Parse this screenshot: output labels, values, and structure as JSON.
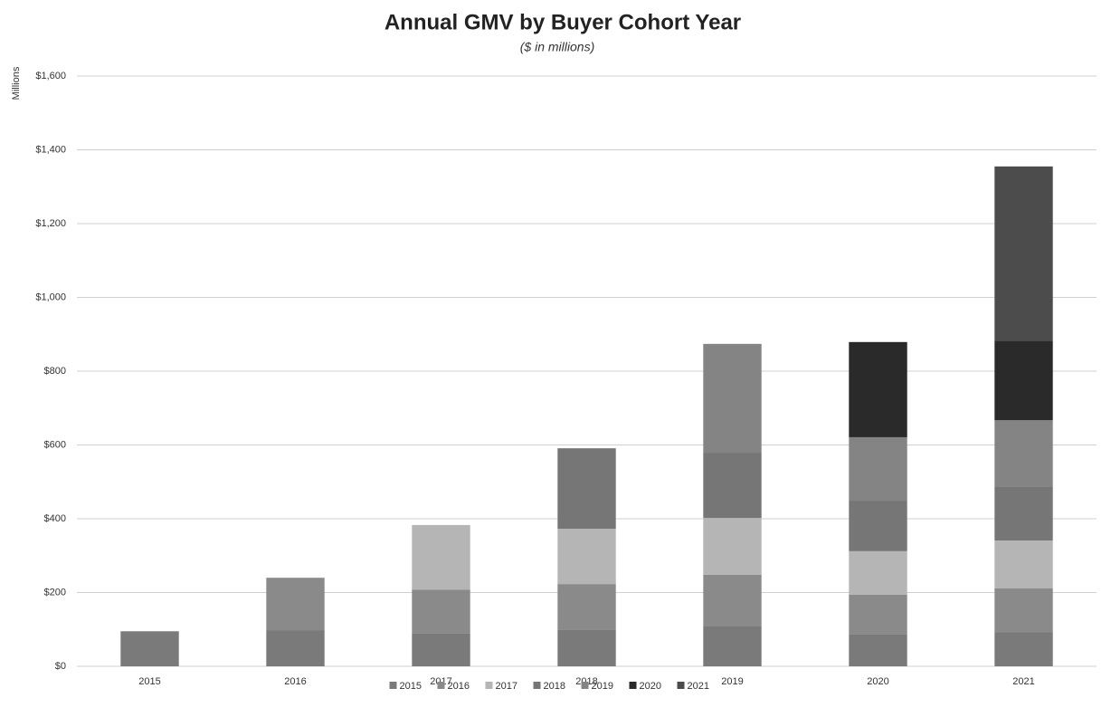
{
  "chart_data": {
    "type": "stacked_bar",
    "title": "Annual GMV by Buyer Cohort Year",
    "subtitle": "($ in millions)",
    "y_axis_label": "Millions",
    "categories": [
      "2015",
      "2016",
      "2017",
      "2018",
      "2019",
      "2020",
      "2021"
    ],
    "series": [
      {
        "name": "2015",
        "color": "#7a7a7a",
        "values": [
          95,
          98,
          90,
          100,
          110,
          86,
          93
        ]
      },
      {
        "name": "2016",
        "color": "#8a8a8a",
        "values": [
          null,
          142,
          118,
          123,
          138,
          108,
          118
        ]
      },
      {
        "name": "2017",
        "color": "#b5b5b5",
        "values": [
          null,
          null,
          175,
          150,
          154,
          118,
          130
        ]
      },
      {
        "name": "2018",
        "color": "#767676",
        "values": [
          null,
          null,
          null,
          218,
          177,
          137,
          147
        ]
      },
      {
        "name": "2019",
        "color": "#848484",
        "values": [
          null,
          null,
          null,
          null,
          295,
          172,
          179
        ]
      },
      {
        "name": "2020",
        "color": "#2a2a2a",
        "values": [
          null,
          null,
          null,
          null,
          null,
          258,
          216
        ]
      },
      {
        "name": "2021",
        "color": "#4c4c4c",
        "values": [
          null,
          null,
          null,
          null,
          null,
          null,
          472
        ]
      }
    ],
    "ylim": [
      0,
      1600
    ],
    "yticks": [
      {
        "value": 0,
        "label": "$0"
      },
      {
        "value": 200,
        "label": "$200"
      },
      {
        "value": 400,
        "label": "$400"
      },
      {
        "value": 600,
        "label": "$600"
      },
      {
        "value": 800,
        "label": "$800"
      },
      {
        "value": 1000,
        "label": "$1,000"
      },
      {
        "value": 1200,
        "label": "$1,200"
      },
      {
        "value": 1400,
        "label": "$1,400"
      },
      {
        "value": 1600,
        "label": "$1,600"
      }
    ],
    "grid": true,
    "legend": "bottom"
  }
}
